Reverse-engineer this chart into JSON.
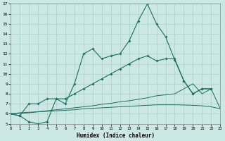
{
  "xlabel": "Humidex (Indice chaleur)",
  "bg_color": "#cce8e4",
  "grid_color": "#aacfcb",
  "line_color": "#1a6e64",
  "xlim": [
    0,
    23
  ],
  "ylim": [
    5,
    17
  ],
  "xticks": [
    0,
    1,
    2,
    3,
    4,
    5,
    6,
    7,
    8,
    9,
    10,
    11,
    12,
    13,
    14,
    15,
    16,
    17,
    18,
    19,
    20,
    21,
    22,
    23
  ],
  "yticks": [
    5,
    6,
    7,
    8,
    9,
    10,
    11,
    12,
    13,
    14,
    15,
    16,
    17
  ],
  "s0x": [
    0,
    1,
    2,
    3,
    4,
    5,
    6,
    7,
    8,
    9,
    10,
    11,
    12,
    13,
    14,
    15,
    16,
    17,
    18,
    19,
    20,
    21,
    22
  ],
  "s0y": [
    6.0,
    5.8,
    5.2,
    5.0,
    5.2,
    7.5,
    7.0,
    9.0,
    12.0,
    12.5,
    11.5,
    11.8,
    12.0,
    13.3,
    15.3,
    17.0,
    15.0,
    13.7,
    11.4,
    9.3,
    8.0,
    8.5,
    8.5
  ],
  "s1x": [
    0,
    1,
    2,
    3,
    4,
    5,
    6,
    7,
    8,
    9,
    10,
    11,
    12,
    13,
    14,
    15,
    16,
    17,
    18,
    19,
    20,
    21,
    22
  ],
  "s1y": [
    6.0,
    5.8,
    7.0,
    7.0,
    7.5,
    7.5,
    7.5,
    8.0,
    8.5,
    9.0,
    9.5,
    10.0,
    10.5,
    11.0,
    11.5,
    11.8,
    11.3,
    11.5,
    11.5,
    9.3,
    8.0,
    8.5,
    8.5
  ],
  "s2x": [
    0,
    1,
    2,
    3,
    4,
    5,
    6,
    7,
    8,
    9,
    10,
    11,
    12,
    13,
    14,
    15,
    16,
    17,
    18,
    19,
    20,
    21,
    22,
    23
  ],
  "s2y": [
    6.0,
    6.1,
    6.15,
    6.2,
    6.25,
    6.3,
    6.35,
    6.4,
    6.5,
    6.55,
    6.6,
    6.65,
    6.7,
    6.75,
    6.8,
    6.85,
    6.9,
    6.9,
    6.9,
    6.88,
    6.85,
    6.8,
    6.7,
    6.5
  ],
  "s3x": [
    0,
    1,
    2,
    3,
    4,
    5,
    6,
    7,
    8,
    9,
    10,
    11,
    12,
    13,
    14,
    15,
    16,
    17,
    18,
    19,
    20,
    21,
    22,
    23
  ],
  "s3y": [
    6.0,
    6.05,
    6.1,
    6.2,
    6.3,
    6.4,
    6.5,
    6.6,
    6.7,
    6.8,
    6.95,
    7.05,
    7.2,
    7.3,
    7.45,
    7.6,
    7.8,
    7.9,
    8.0,
    8.5,
    9.0,
    8.0,
    8.5,
    6.5
  ]
}
